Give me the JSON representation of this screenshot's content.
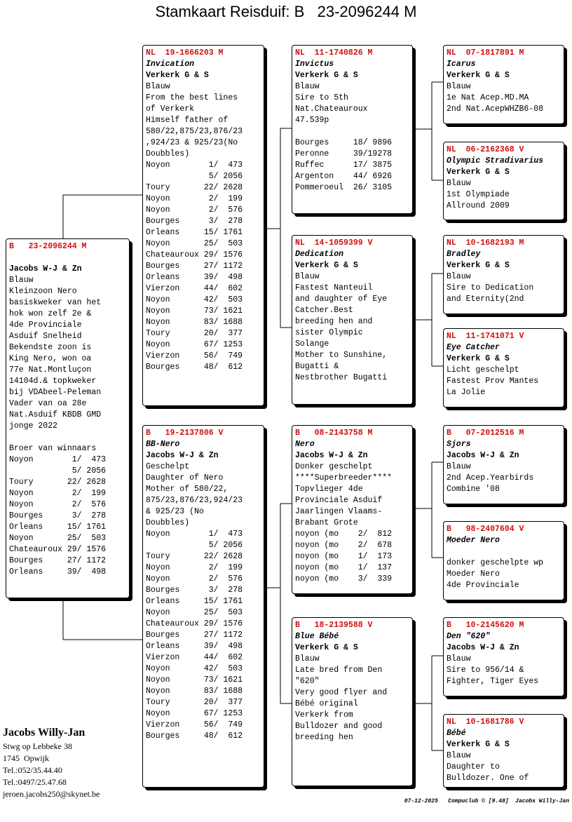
{
  "title": "Stamkaart Reisduif: B   23-2096244 M",
  "pedigree": [
    {
      "header": "B   23-2096244 M",
      "breeder": "Jacobs W-J & Zn",
      "blocks": [
        [
          "Blauw",
          "Kleinzoon Nero",
          "basiskweker van het",
          "hok won zelf 2e &",
          "4de Provinciale",
          "Asduif Snelheid",
          "Bekendste zoon is",
          "King Nero, won oa",
          "77e Nat.Montluçon",
          "14104d.& topkweker",
          "bij VDAbeel-Peleman",
          "Vader van oa 28e",
          "Nat.Asduif KBDB GMD",
          "jonge 2022"
        ],
        [
          "Broer van winnaars",
          "Noyon        1/  473",
          "             5/ 2056",
          "Toury       22/ 2628",
          "Noyon        2/  199",
          "Noyon        2/  576",
          "Bourges      3/  278",
          "Orleans     15/ 1761",
          "Noyon       25/  503",
          "Chateauroux 29/ 1576",
          "Bourges     27/ 1172",
          "Orleans     39/  498"
        ]
      ]
    },
    {
      "header": "NL  19-1666203 M",
      "name": "Invication",
      "breeder": "Verkerk G & S",
      "blocks": [
        [
          "Blauw",
          "From the best lines",
          "of Verkerk",
          "Himself father of",
          "580/22,875/23,876/23",
          ",924/23 & 925/23(No",
          "Doubbles)",
          "Noyon        1/  473",
          "             5/ 2056",
          "Toury       22/ 2628",
          "Noyon        2/  199",
          "Noyon        2/  576",
          "Bourges      3/  278",
          "Orleans     15/ 1761",
          "Noyon       25/  503",
          "Chateauroux 29/ 1576",
          "Bourges     27/ 1172",
          "Orleans     39/  498",
          "Vierzon     44/  602",
          "Noyon       42/  503",
          "Noyon       73/ 1621",
          "Noyon       83/ 1688",
          "Toury       20/  377",
          "Noyon       67/ 1253",
          "Vierzon     56/  749",
          "Bourges     48/  612"
        ]
      ]
    },
    {
      "header": "B   19-2137806 V",
      "name": "BB-Nero",
      "breeder": "Jacobs W-J & Zn",
      "blocks": [
        [
          "Geschelpt",
          "Daughter of Nero",
          "Mother of 580/22,",
          "875/23,876/23,924/23",
          "& 925/23 (No",
          "Doubbles)",
          "Noyon        1/  473",
          "             5/ 2056",
          "Toury       22/ 2628",
          "Noyon        2/  199",
          "Noyon        2/  576",
          "Bourges      3/  278",
          "Orleans     15/ 1761",
          "Noyon       25/  503",
          "Chateauroux 29/ 1576",
          "Bourges     27/ 1172",
          "Orleans     39/  498",
          "Vierzon     44/  602",
          "Noyon       42/  503",
          "Noyon       73/ 1621",
          "Noyon       83/ 1688",
          "Toury       20/  377",
          "Noyon       67/ 1253",
          "Vierzon     56/  749",
          "Bourges     48/  612"
        ]
      ]
    },
    {
      "header": "NL  11-1740826 M",
      "name": "Invictus",
      "breeder": "Verkerk G & S",
      "blocks": [
        [
          "Blauw",
          "Sire to 5th",
          "Nat.Chateauroux",
          "47.539p"
        ],
        [
          "Bourges     18/ 9896",
          "Peronne     39/19278",
          "Ruffec      17/ 3875",
          "Argenton    44/ 6926",
          "Pommeroeul  26/ 3105"
        ]
      ]
    },
    {
      "header": "NL  14-1059399 V",
      "name": "Dedication",
      "breeder": "Verkerk G & S",
      "blocks": [
        [
          "Blauw",
          "Fastest Nanteuil",
          "and daughter of Eye",
          "Catcher.Best",
          "breeding hen and",
          "sister Olympic",
          "Solange",
          "Mother to Sunshine,",
          "Bugatti &",
          "Nestbrother Bugatti"
        ]
      ]
    },
    {
      "header": "B   08-2143758 M",
      "name": "Nero",
      "breeder": "Jacobs W-J & Zn",
      "blocks": [
        [
          "Donker geschelpt",
          "****Superbreeder****",
          "Topvlieger 4de",
          "Provinciale Asduif",
          "Jaarlingen Vlaams-",
          "Brabant Grote",
          "noyon (mo    2/  812",
          "noyon (mo    2/  678",
          "noyon (mo    1/  173",
          "noyon (mo    1/  137",
          "noyon (mo    3/  339"
        ]
      ]
    },
    {
      "header": "B   18-2139588 V",
      "name": "Blue Bébé",
      "breeder": "Verkerk G & S",
      "blocks": [
        [
          "Blauw",
          "Late bred from Den",
          "\"620\"",
          "Very good flyer and",
          "Bébé original",
          "Verkerk from",
          "Bulldozer and good",
          "breeding hen"
        ]
      ]
    },
    {
      "header": "NL  07-1817891 M",
      "name": "Icarus",
      "breeder": "Verkerk G & S",
      "blocks": [
        [
          "Blauw",
          "1e Nat Acep.MD.MA",
          "2nd Nat.AcepWHZB6-08"
        ]
      ]
    },
    {
      "header": "NL  06-2162368 V",
      "name": "Olympic Stradivarius",
      "breeder": "Verkerk G & S",
      "blocks": [
        [
          "Blauw",
          "1st Olympiade",
          "Allround 2009"
        ]
      ]
    },
    {
      "header": "NL  10-1682193 M",
      "name": "Bradley",
      "breeder": "Verkerk G & S",
      "blocks": [
        [
          "Blauw",
          "Sire to Dedication",
          "and Eternity(2nd"
        ]
      ]
    },
    {
      "header": "NL  11-1741071 V",
      "name": "Eye Catcher",
      "breeder": "Verkerk G & S",
      "blocks": [
        [
          "Licht geschelpt",
          "Fastest Prov Mantes",
          "La Jolie"
        ]
      ]
    },
    {
      "header": "B   07-2012516 M",
      "name": "Sjors",
      "breeder": "Jacobs W-J & Zn",
      "blocks": [
        [
          "Blauw",
          "2nd Acep.Yearbirds",
          "Combine '08"
        ]
      ]
    },
    {
      "header": "B   98-2407604 V",
      "name": "Moeder Nero",
      "blocks": [
        [
          "donker geschelpte wp",
          "Moeder Nero",
          "4de Provinciale"
        ]
      ]
    },
    {
      "header": "B   10-2145620 M",
      "name": "Den \"620\"",
      "breeder": "Jacobs W-J & Zn",
      "blocks": [
        [
          "Blauw",
          "Sire to 956/14 &",
          "Fighter, Tiger Eyes"
        ]
      ]
    },
    {
      "header": "NL  10-1681786 V",
      "name": "Bébé",
      "breeder": "Verkerk G & S",
      "blocks": [
        [
          "Blauw",
          "Daughter to",
          "Bulldozer. One of"
        ]
      ]
    }
  ],
  "owner": {
    "name": "Jacobs Willy-Jan",
    "lines": [
      "Stwg op Lebbeke 38",
      "1745  Opwijk",
      "Tel.:052/35.44.40",
      "Tel.:0497/25.47.68",
      "jeroen.jacobs250@skynet.be"
    ]
  },
  "footer": "07-12-2025   Compuclub © [9.48]  Jacobs Willy-Jan"
}
